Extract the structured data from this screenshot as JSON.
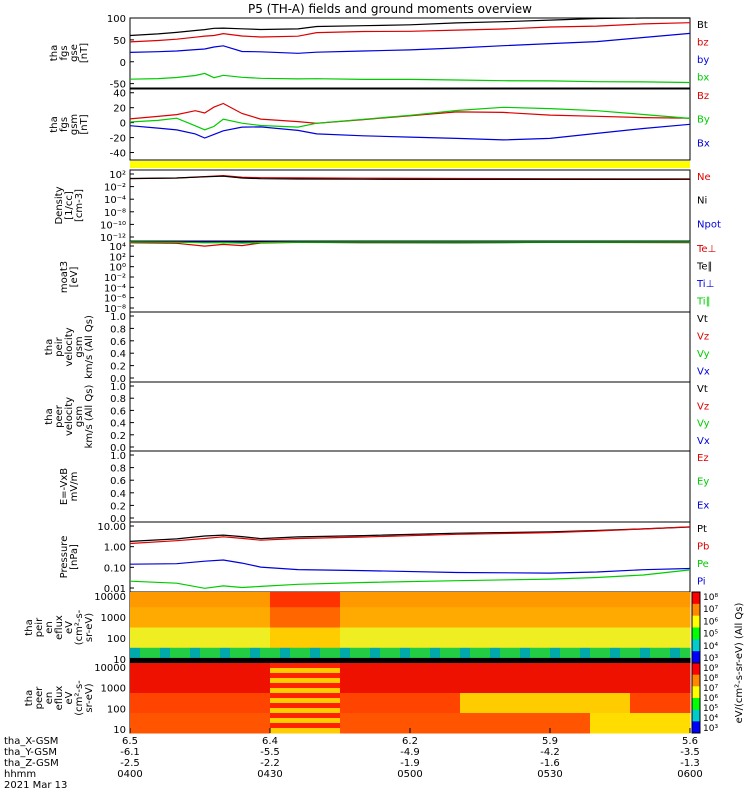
{
  "title": "P5 (TH-A) fields and ground moments overview",
  "colors": {
    "black": "#000000",
    "red": "#dd0000",
    "green": "#00cc00",
    "blue": "#0000dd",
    "yellow": "#ffff00"
  },
  "chart_data": [
    {
      "type": "line",
      "panel": "fgs",
      "ylabel": [
        "tha",
        "fgs",
        "gse",
        "[nT]"
      ],
      "ylim": [
        -60,
        100
      ],
      "yticks": [
        "100",
        "50",
        "0",
        "-50"
      ],
      "yticks_values": [
        100,
        50,
        0,
        -50
      ],
      "series": [
        {
          "name": "Bt",
          "color": "#000000",
          "x": [
            0,
            3,
            5,
            7,
            8,
            9,
            10,
            12,
            14,
            18,
            20,
            25,
            30,
            35,
            40,
            45,
            50,
            55,
            60
          ],
          "values": [
            60,
            63,
            66,
            70,
            72,
            75,
            76,
            75,
            74,
            76,
            82,
            84,
            86,
            90,
            92,
            95,
            98,
            100,
            100
          ]
        },
        {
          "name": "bz",
          "color": "#dd0000",
          "x": [
            0,
            3,
            5,
            7,
            8,
            9,
            10,
            12,
            14,
            18,
            20,
            25,
            30,
            35,
            40,
            45,
            50,
            55,
            60
          ],
          "values": [
            44,
            47,
            50,
            55,
            58,
            60,
            65,
            60,
            58,
            60,
            68,
            70,
            70,
            72,
            74,
            78,
            80,
            85,
            88
          ]
        },
        {
          "name": "by",
          "color": "#0000dd",
          "x": [
            0,
            3,
            5,
            7,
            8,
            9,
            10,
            12,
            14,
            18,
            20,
            25,
            30,
            35,
            40,
            45,
            50,
            55,
            60
          ],
          "values": [
            20,
            22,
            24,
            28,
            30,
            35,
            38,
            25,
            24,
            20,
            22,
            24,
            26,
            30,
            35,
            40,
            45,
            55,
            65
          ]
        },
        {
          "name": "bx",
          "color": "#00cc00",
          "x": [
            0,
            3,
            5,
            7,
            8,
            9,
            10,
            12,
            14,
            18,
            20,
            25,
            30,
            35,
            40,
            45,
            50,
            55,
            60
          ],
          "values": [
            -40,
            -38,
            -35,
            -30,
            -25,
            -35,
            -30,
            -35,
            -38,
            -40,
            -40,
            -42,
            -42,
            -43,
            -44,
            -44,
            -45,
            -45,
            -46
          ]
        }
      ]
    },
    {
      "type": "line",
      "panel": "fgs_gsm",
      "ylabel": [
        "tha",
        "fgs",
        "gsm",
        "[nT]"
      ],
      "ylim": [
        -50,
        45
      ],
      "yticks": [
        "40",
        "20",
        "0",
        "-20",
        "-40"
      ],
      "yticks_values": [
        40,
        20,
        0,
        -20,
        -40
      ],
      "series": [
        {
          "name": "Bz",
          "color": "#dd0000",
          "x": [
            0,
            3,
            5,
            7,
            8,
            9,
            10,
            12,
            14,
            18,
            20,
            25,
            30,
            35,
            40,
            45,
            50,
            55,
            60
          ],
          "values": [
            5,
            8,
            10,
            15,
            12,
            20,
            25,
            12,
            5,
            2,
            0,
            5,
            10,
            15,
            14,
            10,
            8,
            6,
            5
          ]
        },
        {
          "name": "By",
          "color": "#00cc00",
          "x": [
            0,
            3,
            5,
            7,
            8,
            9,
            10,
            12,
            14,
            18,
            20,
            25,
            30,
            35,
            40,
            45,
            50,
            55,
            60
          ],
          "values": [
            0,
            2,
            5,
            -5,
            -10,
            -5,
            5,
            0,
            -3,
            -5,
            0,
            5,
            10,
            16,
            20,
            18,
            15,
            10,
            5
          ]
        },
        {
          "name": "Bx",
          "color": "#0000dd",
          "x": [
            0,
            3,
            5,
            7,
            8,
            9,
            10,
            12,
            14,
            18,
            20,
            25,
            30,
            35,
            40,
            45,
            50,
            55,
            60
          ],
          "values": [
            -5,
            -8,
            -10,
            -15,
            -20,
            -15,
            -10,
            -5,
            -5,
            -10,
            -15,
            -18,
            -20,
            -22,
            -24,
            -22,
            -15,
            -8,
            -2
          ]
        }
      ]
    },
    {
      "type": "line",
      "panel": "density",
      "ylabel": [
        "Density",
        "[1/cc]",
        "[cm-3]"
      ],
      "ylim": [
        -15,
        3
      ],
      "log": true,
      "yticks": [
        "10²",
        "10⁻²",
        "10⁻⁴",
        "10⁻⁸",
        "10⁻¹⁰",
        "10⁻¹²"
      ],
      "series": [
        {
          "name": "Ne",
          "color": "#dd0000",
          "x": [
            0,
            5,
            8,
            10,
            12,
            14,
            18,
            25,
            35,
            45,
            60
          ],
          "values": [
            0.8,
            0.9,
            1.2,
            1.4,
            1.0,
            0.9,
            0.9,
            0.9,
            0.9,
            0.9,
            0.9
          ]
        },
        {
          "name": "Ni",
          "color": "#000000",
          "x": [
            0,
            5,
            8,
            10,
            12,
            14,
            18,
            25,
            35,
            45,
            60
          ],
          "values": [
            0.7,
            0.8,
            1.1,
            1.3,
            0.9,
            0.8,
            0.8,
            0.8,
            0.8,
            0.8,
            0.8
          ]
        },
        {
          "name": "Npot",
          "color": "#0000dd",
          "x": [],
          "values": []
        }
      ]
    },
    {
      "type": "line",
      "panel": "temperature",
      "ylabel": [
        "moat3",
        "[eV]"
      ],
      "log": true,
      "yticks": [
        "10⁴",
        "10²",
        "10⁰",
        "10⁻²",
        "10⁻⁴",
        "10⁻⁶",
        "10⁻⁸"
      ],
      "series": [
        {
          "name": "Te⊥",
          "color": "#dd0000",
          "x": [
            0,
            5,
            8,
            10,
            12,
            14,
            18,
            25,
            35,
            45,
            60
          ],
          "values": [
            2.8,
            2.6,
            1.8,
            2.2,
            1.9,
            2.6,
            2.8,
            2.8,
            2.9,
            3.0,
            3.0
          ]
        },
        {
          "name": "Te∥",
          "color": "#000000",
          "x": [
            0,
            5,
            8,
            10,
            12,
            14,
            18,
            25,
            35,
            45,
            60
          ],
          "values": [
            3.0,
            2.9,
            2.7,
            2.8,
            2.7,
            2.9,
            3.0,
            3.0,
            3.0,
            3.1,
            3.1
          ]
        },
        {
          "name": "Ti⊥",
          "color": "#0000dd",
          "x": [
            0,
            5,
            8,
            10,
            12,
            14,
            18,
            25,
            35,
            45,
            60
          ],
          "values": [
            3.2,
            3.1,
            3.0,
            3.1,
            3.0,
            3.1,
            3.2,
            3.2,
            3.2,
            3.2,
            3.2
          ]
        },
        {
          "name": "Ti∥",
          "color": "#00cc00",
          "x": [
            0,
            5,
            8,
            10,
            12,
            14,
            18,
            25,
            35,
            45,
            60
          ],
          "values": [
            3.1,
            3.0,
            2.9,
            3.0,
            2.9,
            3.0,
            3.1,
            3.1,
            3.1,
            3.1,
            3.1
          ]
        }
      ]
    },
    {
      "type": "line",
      "panel": "peir_velocity",
      "ylabel": [
        "tha",
        "peir",
        "velocity",
        "gsm",
        "km/s (All Qs)"
      ],
      "ylim": [
        0,
        1
      ],
      "yticks": [
        "1.0",
        "0.8",
        "0.6",
        "0.4",
        "0.2",
        "0.0"
      ],
      "series": [
        {
          "name": "Vt",
          "color": "#000000",
          "values": []
        },
        {
          "name": "Vz",
          "color": "#dd0000",
          "values": []
        },
        {
          "name": "Vy",
          "color": "#00cc00",
          "values": []
        },
        {
          "name": "Vx",
          "color": "#0000dd",
          "values": []
        }
      ]
    },
    {
      "type": "line",
      "panel": "peer_velocity",
      "ylabel": [
        "tha",
        "peer",
        "velocity",
        "gsm",
        "km/s (All Qs)"
      ],
      "ylim": [
        0,
        1
      ],
      "yticks": [
        "1.0",
        "0.8",
        "0.6",
        "0.4",
        "0.2",
        "0.0"
      ],
      "series": [
        {
          "name": "Vt",
          "color": "#000000",
          "values": []
        },
        {
          "name": "Vz",
          "color": "#dd0000",
          "values": []
        },
        {
          "name": "Vy",
          "color": "#00cc00",
          "values": []
        },
        {
          "name": "Vx",
          "color": "#0000dd",
          "values": []
        }
      ]
    },
    {
      "type": "line",
      "panel": "efield",
      "ylabel": [
        "E=-VxB",
        "mV/m"
      ],
      "ylim": [
        0,
        1
      ],
      "yticks": [
        "1.0",
        "0.8",
        "0.6",
        "0.4",
        "0.2",
        "0.0"
      ],
      "series": [
        {
          "name": "Ez",
          "color": "#dd0000",
          "values": []
        },
        {
          "name": "Ey",
          "color": "#00cc00",
          "values": []
        },
        {
          "name": "Ex",
          "color": "#0000dd",
          "values": []
        }
      ]
    },
    {
      "type": "line",
      "panel": "pressure",
      "ylabel": [
        "Pressure",
        "[nPa]"
      ],
      "log": true,
      "ylim": [
        0.03,
        10
      ],
      "yticks": [
        "10.00",
        "1.00",
        "0.10",
        "0.01"
      ],
      "yticks_values": [
        10,
        1,
        0.1,
        0.01
      ],
      "series": [
        {
          "name": "Pt",
          "color": "#000000",
          "x": [
            0,
            5,
            8,
            10,
            12,
            14,
            18,
            25,
            35,
            45,
            50,
            55,
            60
          ],
          "values": [
            2.0,
            2.4,
            3.0,
            3.2,
            2.8,
            2.4,
            2.8,
            3.2,
            4.0,
            4.6,
            5.2,
            6.0,
            7.0
          ]
        },
        {
          "name": "Pb",
          "color": "#dd0000",
          "x": [
            0,
            5,
            8,
            10,
            12,
            14,
            18,
            25,
            35,
            45,
            50,
            55,
            60
          ],
          "values": [
            1.6,
            2.0,
            2.4,
            2.8,
            2.5,
            2.2,
            2.6,
            3.0,
            3.8,
            4.4,
            5.0,
            5.8,
            6.8
          ]
        },
        {
          "name": "Pe",
          "color": "#00cc00",
          "x": [
            0,
            5,
            8,
            10,
            12,
            14,
            18,
            25,
            35,
            45,
            50,
            55,
            60
          ],
          "values": [
            0.07,
            0.06,
            0.04,
            0.05,
            0.045,
            0.05,
            0.06,
            0.07,
            0.08,
            0.09,
            0.1,
            0.12,
            0.18
          ]
        },
        {
          "name": "Pi",
          "color": "#0000dd",
          "x": [
            0,
            5,
            8,
            10,
            12,
            14,
            18,
            25,
            35,
            45,
            50,
            55,
            60
          ],
          "values": [
            0.3,
            0.32,
            0.4,
            0.45,
            0.35,
            0.25,
            0.2,
            0.18,
            0.15,
            0.14,
            0.15,
            0.18,
            0.2
          ]
        }
      ]
    },
    {
      "type": "heatmap",
      "panel": "peir_spectrogram",
      "ylabel": [
        "tha",
        "peir",
        "en",
        "eflux",
        "eV",
        "(cm²-s-",
        "sr-eV)"
      ],
      "yticks": [
        "10000",
        "1000",
        "100",
        "10"
      ],
      "colorbar": {
        "label": "eV/(cm²-s-sr-eV) (All Qs)",
        "ticks": [
          "10⁸",
          "10⁷",
          "10⁶",
          "10⁵",
          "10⁴",
          "10³"
        ]
      }
    },
    {
      "type": "heatmap",
      "panel": "peer_spectrogram",
      "ylabel": [
        "tha",
        "peer",
        "en",
        "eflux",
        "eV",
        "(cm²-s-",
        "sr-eV)"
      ],
      "yticks": [
        "10000",
        "1000",
        "100",
        "10"
      ],
      "colorbar": {
        "label": "eV/(cm²-s-sr-eV) (All Qs)",
        "ticks": [
          "10⁹",
          "10⁸",
          "10⁷",
          "10⁶",
          "10⁵",
          "10⁴",
          "10³"
        ]
      }
    }
  ],
  "xaxis": {
    "rows": [
      {
        "label": "tha_X-GSM",
        "values": [
          "6.5",
          "6.4",
          "6.2",
          "5.9",
          "5.6"
        ]
      },
      {
        "label": "tha_Y-GSM",
        "values": [
          "-6.1",
          "-5.5",
          "-4.9",
          "-4.2",
          "-3.5"
        ]
      },
      {
        "label": "tha_Z-GSM",
        "values": [
          "-2.5",
          "-2.2",
          "-1.9",
          "-1.6",
          "-1.3"
        ]
      },
      {
        "label": "hhmm",
        "values": [
          "0400",
          "0430",
          "0500",
          "0530",
          "0600"
        ]
      }
    ],
    "date": "2021 Mar 13"
  }
}
